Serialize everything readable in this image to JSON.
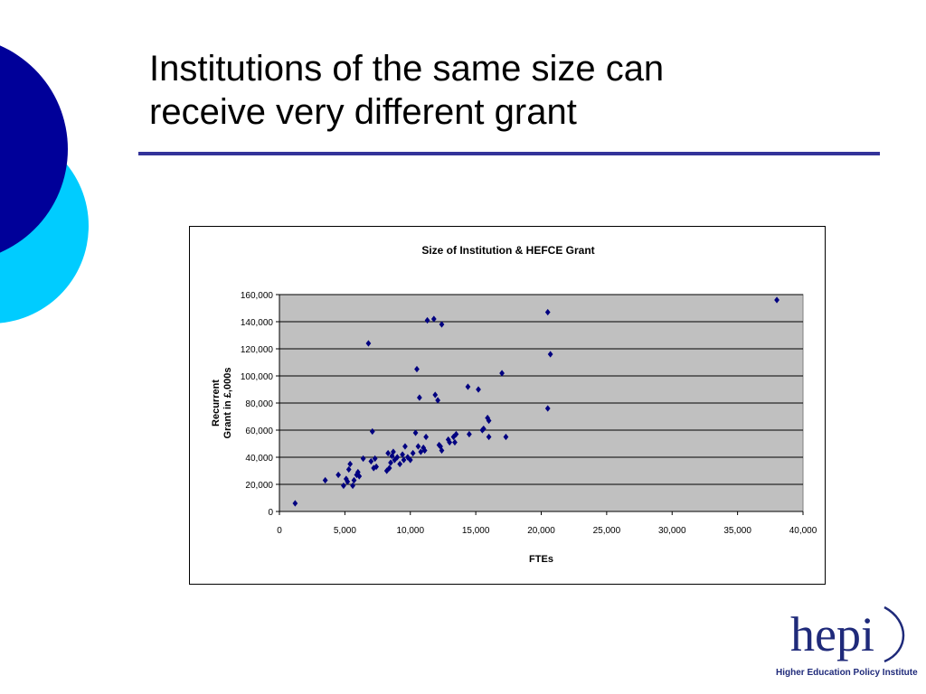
{
  "slide": {
    "title_line1": "Institutions of the same size can",
    "title_line2": "receive very different grant"
  },
  "colors": {
    "dark_circle": "#000099",
    "light_circle": "#00ccff",
    "title_rule": "#33339a",
    "plot_bg": "#c0c0c0",
    "marker": "#000080"
  },
  "chart_data": {
    "type": "scatter",
    "title": "Size of Institution & HEFCE Grant",
    "xlabel": "FTEs",
    "ylabel_lines": [
      "Recurrent",
      "Grant in £,000s"
    ],
    "xlim": [
      0,
      40000
    ],
    "ylim": [
      0,
      160000
    ],
    "xticks": [
      0,
      5000,
      10000,
      15000,
      20000,
      25000,
      30000,
      35000,
      40000
    ],
    "xtick_labels": [
      "0",
      "5,000",
      "10,000",
      "15,000",
      "20,000",
      "25,000",
      "30,000",
      "35,000",
      "40,000"
    ],
    "yticks": [
      0,
      20000,
      40000,
      60000,
      80000,
      100000,
      120000,
      140000,
      160000
    ],
    "ytick_labels": [
      "0",
      "20,000",
      "40,000",
      "60,000",
      "80,000",
      "100,000",
      "120,000",
      "140,000",
      "160,000"
    ],
    "grid": "horizontal",
    "legend": "none",
    "marker": "diamond",
    "points": [
      [
        1200,
        6000
      ],
      [
        3500,
        23000
      ],
      [
        4500,
        27000
      ],
      [
        4900,
        19000
      ],
      [
        5100,
        24000
      ],
      [
        5200,
        22000
      ],
      [
        5300,
        31000
      ],
      [
        5400,
        35000
      ],
      [
        5600,
        19000
      ],
      [
        5700,
        23000
      ],
      [
        5900,
        27000
      ],
      [
        6000,
        29000
      ],
      [
        6100,
        26000
      ],
      [
        6400,
        39000
      ],
      [
        6800,
        124000
      ],
      [
        7000,
        37000
      ],
      [
        7100,
        59000
      ],
      [
        7200,
        32000
      ],
      [
        7300,
        39000
      ],
      [
        7400,
        33000
      ],
      [
        8200,
        30000
      ],
      [
        8300,
        43000
      ],
      [
        8400,
        32000
      ],
      [
        8500,
        36000
      ],
      [
        8600,
        41000
      ],
      [
        8700,
        44000
      ],
      [
        8800,
        38000
      ],
      [
        9000,
        40000
      ],
      [
        9200,
        35000
      ],
      [
        9400,
        42000
      ],
      [
        9500,
        38000
      ],
      [
        9600,
        48000
      ],
      [
        9800,
        40000
      ],
      [
        10000,
        38000
      ],
      [
        10200,
        43000
      ],
      [
        10400,
        58000
      ],
      [
        10500,
        105000
      ],
      [
        10600,
        48000
      ],
      [
        10700,
        84000
      ],
      [
        10800,
        44000
      ],
      [
        11000,
        47000
      ],
      [
        11100,
        45000
      ],
      [
        11200,
        55000
      ],
      [
        11300,
        141000
      ],
      [
        11800,
        142000
      ],
      [
        11900,
        86000
      ],
      [
        12100,
        82000
      ],
      [
        12200,
        49000
      ],
      [
        12300,
        48000
      ],
      [
        12400,
        45000
      ],
      [
        12400,
        138000
      ],
      [
        12900,
        53000
      ],
      [
        13000,
        51000
      ],
      [
        13300,
        55000
      ],
      [
        13400,
        51000
      ],
      [
        13500,
        57000
      ],
      [
        14400,
        92000
      ],
      [
        14500,
        57000
      ],
      [
        15200,
        90000
      ],
      [
        15500,
        60000
      ],
      [
        15600,
        61000
      ],
      [
        15900,
        69000
      ],
      [
        16000,
        67000
      ],
      [
        16000,
        55000
      ],
      [
        17000,
        102000
      ],
      [
        17300,
        55000
      ],
      [
        20500,
        147000
      ],
      [
        20500,
        76000
      ],
      [
        20700,
        116000
      ],
      [
        38000,
        156000
      ]
    ]
  },
  "logo": {
    "wordmark": "hepi",
    "caption": "Higher Education Policy Institute"
  }
}
